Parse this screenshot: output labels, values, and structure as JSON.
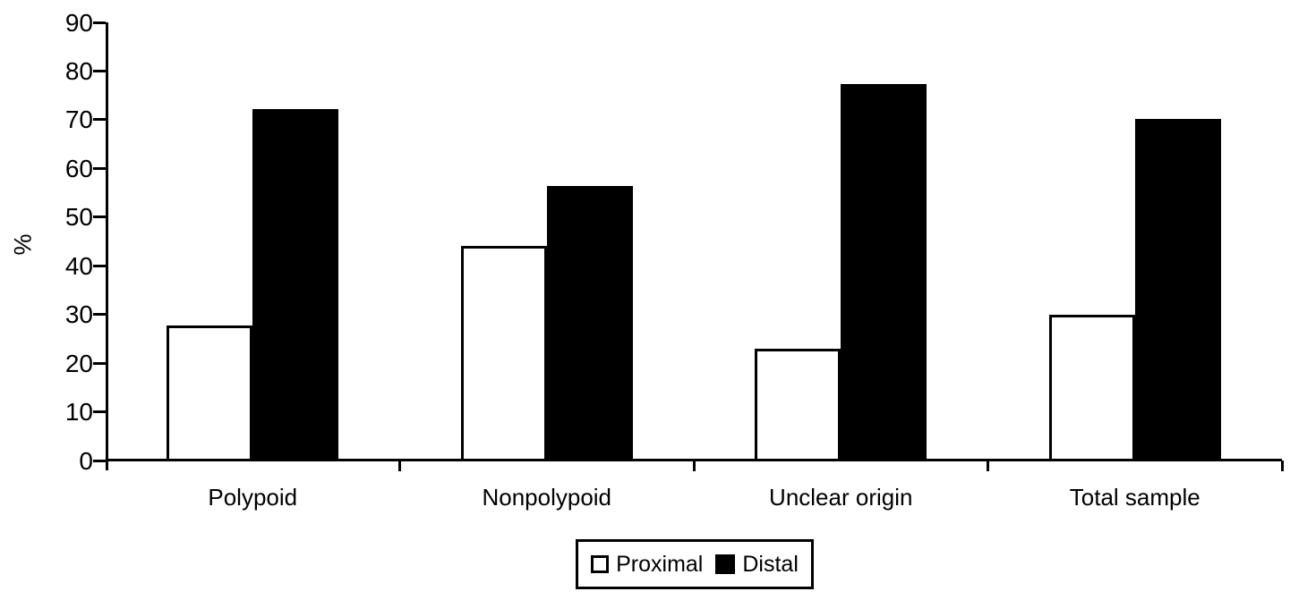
{
  "figure": {
    "background": "#ffffff",
    "ink_color": "#000000"
  },
  "chart_data": {
    "type": "bar",
    "title": "",
    "xlabel": "",
    "ylabel": "%",
    "ylim": [
      0,
      90
    ],
    "ytick_interval": 10,
    "ytick_labels": [
      "90",
      "80",
      "70",
      "60",
      "50",
      "40",
      "30",
      "20",
      "10",
      "0"
    ],
    "grid": false,
    "legend_position": "bottom-center",
    "categories": [
      "Polypoid",
      "Nonpolypoid",
      "Unclear origin",
      "Total sample"
    ],
    "series": [
      {
        "name": "Proximal",
        "fill": "#ffffff",
        "border": "#000000",
        "values": [
          27.8,
          44.0,
          22.9,
          29.9
        ]
      },
      {
        "name": "Distal",
        "fill": "#000000",
        "border": "#000000",
        "values": [
          72.2,
          56.4,
          77.3,
          70.1
        ]
      }
    ]
  }
}
